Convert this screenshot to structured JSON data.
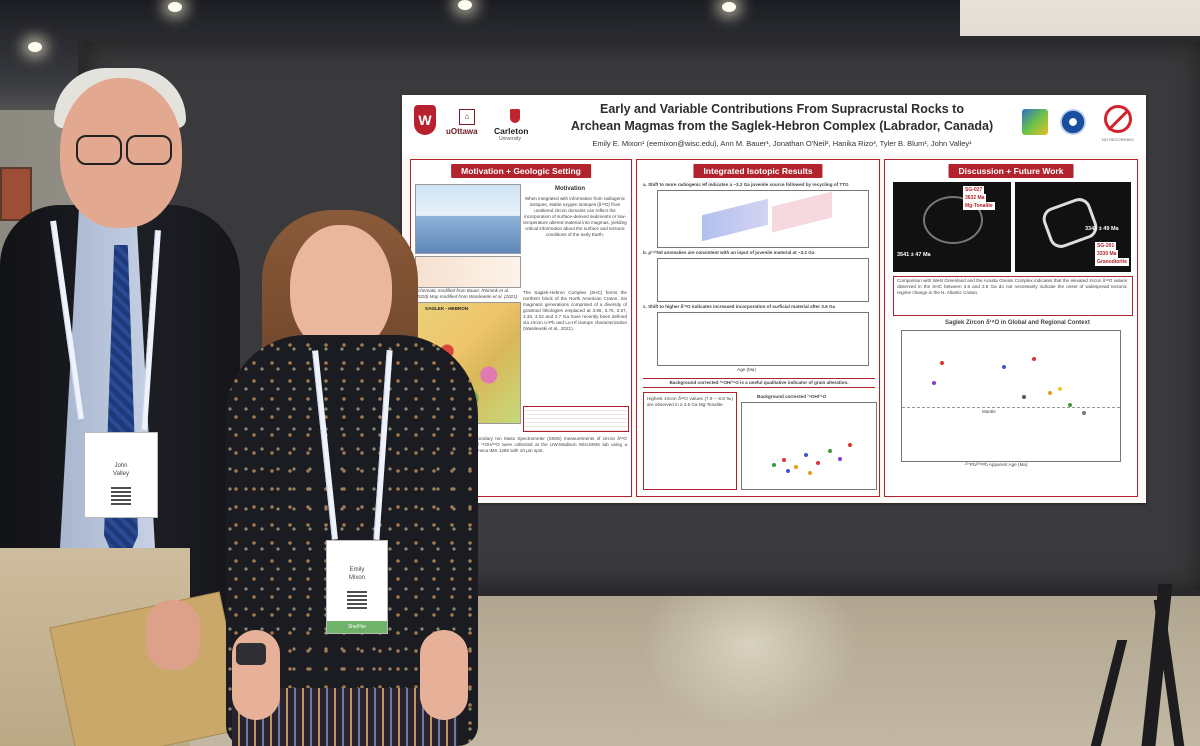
{
  "poster": {
    "title_line1": "Early and Variable Contributions From Supracrustal Rocks to",
    "title_line2": "Archean Magmas from the Saglek-Hebron Complex (Labrador, Canada)",
    "authors": "Emily E. Mixon¹ (eemixon@wisc.edu), Ann M. Bauer¹, Jonathan O'Neil², Hanika Rizo³, Tyler B. Blum¹, John Valley¹",
    "logos": {
      "uottawa": "uOttawa",
      "carleton": "Carleton",
      "carleton_sub": "University",
      "uw_letter": "W",
      "no_recording": "NO RECORDING"
    },
    "sections": {
      "motivation": {
        "heading": "Motivation + Geologic Setting",
        "subheading": "Motivation",
        "text": "When integrated with information from radiogenic isotopes, stable oxygen isotopes (δ¹⁸O) from unaltered zircon domains can reflect the incorporation of surface-derived sediments or low-temperature altered material into magmas, yielding critical information about the surface and tectonic conditions of the early Earth.",
        "map_caption": "Schematic modified from Bauer, Reimink et al. (2020) Map modified from Wasilewski et al. (2021)",
        "shc_text": "The Saglek-Hebron Complex (SHC) forms the northern block of the North American Craton. Six magmatic generations comprised of a diversity of granitoid lithologies emplaced at 3.86, 3.75, 3.57, 3.33, 3.22 and 2.7 Ga have recently been defined via zircon U-Pb and Lu-Hf isotope characterization (Wasilewski et al., 2021).",
        "map_label": "SAGLEK - HEBRON",
        "sims_text": "Secondary Ion Mass Spectrometer (SIMS) measurements of zircon δ¹⁸O and ¹⁶OH/¹⁶O were collected at the UW-Madison WiscSIMS lab using a Cameca IMS 1280 with 10 µm spot."
      },
      "isotopic": {
        "heading": "Integrated Isotopic Results",
        "plot_a": "a. Shift to more radiogenic Hf indicates a ~3.2 Ga juvenile source followed by recycling of TTG",
        "plot_b": "b. μ¹⁴²Nd anomalies are consistent with an input of juvenile material at ~3.2 Ga",
        "plot_c": "c. Shift to higher δ¹⁸O indicates increased incorporation of surficial material after 3.6 Ga",
        "axis_label": "Age (Ma)",
        "bg_note": "Background corrected ¹⁶OH/¹⁶O is a useful qualitative indicator of grain alteration.",
        "highest_text": "Highest zircon δ¹⁸O values (7.9 – 8.8 ‰) are observed in a 3.6 Ga Mg-Tonalite.",
        "bg_plot_title": "Background corrected ¹⁶OH/¹⁶O"
      },
      "discussion": {
        "heading": "Discussion + Future Work",
        "comparison_text": "Comparison with West Greenland and the Acasta Gneiss Complex indicates that the elevated zircon δ¹⁸O values observed in the SHC between 3.6 and 2.8 Ga do not necessarily indicate the onset of widespread tectonic regime change in the N. Atlantic Craton.",
        "global_title": "Saglek Zircon δ¹⁸O in Global and Regional Context",
        "global_x_label": "²⁰⁷Pb/²⁰⁶Pb Apparent Age (Ma)",
        "mantle_label": "Mantle",
        "zircon1": {
          "tag": "SG-027",
          "age": "3632 Ma",
          "rock": "Mg-Tonalite"
        },
        "zircon2": {
          "tag": "SG-201",
          "age": "3330 Ma",
          "rock": "Granodiorite"
        },
        "zircon_age_left": "3541 ± 47 Ma",
        "zircon_age_right": "3341 ± 49 Ma"
      }
    }
  },
  "badges": {
    "man": {
      "first": "John",
      "last": "Valley"
    },
    "woman": {
      "first": "Emily",
      "last": "Mixon",
      "ribbon": "She/Her"
    }
  }
}
